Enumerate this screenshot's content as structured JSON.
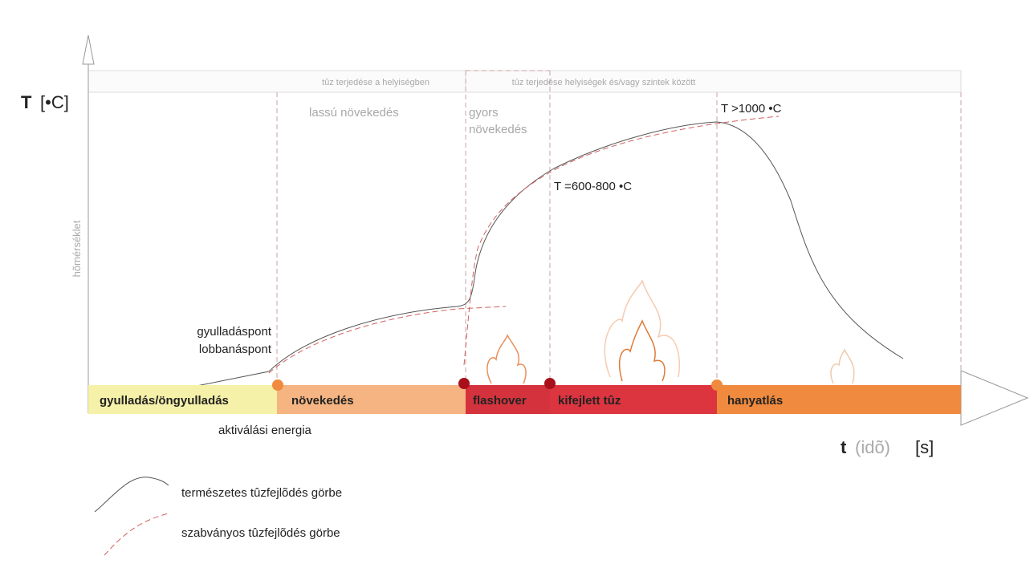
{
  "axes": {
    "y_symbol": "T",
    "y_unit": "[•C]",
    "y_name": "hõmérséklet",
    "x_symbol": "t",
    "x_name": "(idõ)",
    "x_unit": "[s]"
  },
  "header": {
    "left": "tûz terjedése a helyiségben",
    "right": "tûz terjedése helyiségek és/vagy szintek között"
  },
  "notes": {
    "slow": "lassú növekedés",
    "fast_1": "gyors",
    "fast_2": "növekedés",
    "t_mid": "T =600-800 •C",
    "t_high": "T >1000 •C",
    "ignition_1": "gyulladáspont",
    "ignition_2": "lobbanáspont",
    "activation": "aktiválási energia"
  },
  "phases": [
    "gyulladás/öngyulladás",
    "növekedés",
    "flashover",
    "kifejlett tûz",
    "hanyatlás"
  ],
  "legend": [
    "természetes tûzfejlõdés görbe",
    "szabványos tûzfejlõdés görbe"
  ]
}
